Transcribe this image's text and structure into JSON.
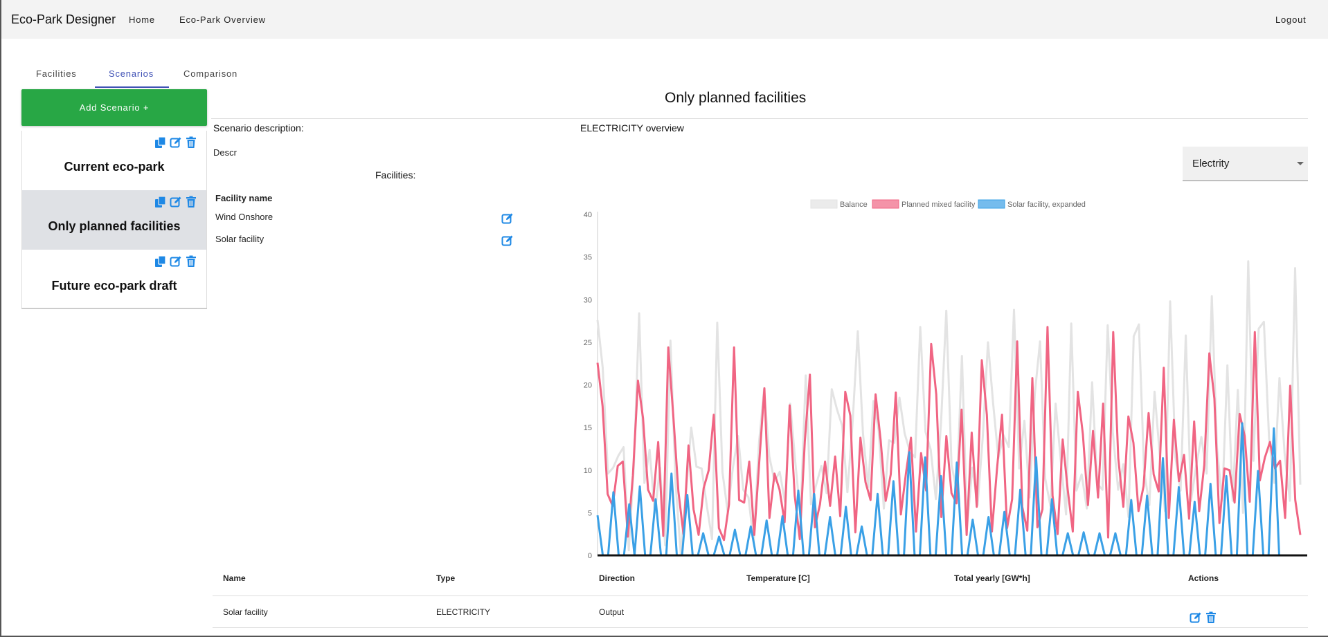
{
  "navbar": {
    "brand": "Eco-Park Designer",
    "links": [
      "Home",
      "Eco-Park Overview"
    ],
    "logout": "Logout"
  },
  "tabs": [
    {
      "label": "Facilities",
      "active": false
    },
    {
      "label": "Scenarios",
      "active": true
    },
    {
      "label": "Comparison",
      "active": false
    }
  ],
  "sidebar": {
    "add_button": "Add Scenario +",
    "scenarios": [
      {
        "name": "Current eco-park",
        "selected": false
      },
      {
        "name": "Only planned facilities",
        "selected": true
      },
      {
        "name": "Future eco-park draft",
        "selected": false
      }
    ]
  },
  "scenario": {
    "title": "Only planned facilities",
    "description_label": "Scenario description:",
    "description": "Descr",
    "facilities_label": "Facilities:",
    "facilities_header": "Facility name",
    "facilities": [
      "Wind Onshore",
      "Solar facility"
    ]
  },
  "overview": {
    "title": "ELECTRICITY overview",
    "select_value": "Electrity"
  },
  "colors": {
    "accent": "#3f51b5",
    "add_button": "#28a745",
    "icon_blue": "#1e88e5",
    "balance": "#e3e3e3",
    "planned": "#f06583",
    "solar": "#3aa0e6"
  },
  "chart_data": {
    "type": "line",
    "title": "",
    "ylim": [
      0,
      40
    ],
    "yticks": [
      0,
      5,
      10,
      15,
      20,
      25,
      30,
      35,
      40
    ],
    "legend_position": "top-center",
    "grid": false,
    "series": [
      {
        "name": "Balance",
        "color": "#e3e3e3",
        "values": [
          27.6,
          22.0,
          9.6,
          10.3,
          11.7,
          12.7,
          0.6,
          10.7,
          28.4,
          8.5,
          12.4,
          5.0,
          10.3,
          1.2,
          25.2,
          8.4,
          0.1,
          7.4,
          15.0,
          10.4,
          10.2,
          5.8,
          1.9,
          27.3,
          9.8,
          5.1,
          10.3,
          14.0,
          7.7,
          6.8,
          1.5,
          13.1,
          19.5,
          11.6,
          8.7,
          9.8,
          6.3,
          17.8,
          10.9,
          4.6,
          21.1,
          6.0,
          8.3,
          10.5,
          7.3,
          19.5,
          17.1,
          15.2,
          7.4,
          15.6,
          26.3,
          14.3,
          8.0,
          18.1,
          14.7,
          5.5,
          13.5,
          13.2,
          18.5,
          14.3,
          12.2,
          11.5,
          26.8,
          14.5,
          12.4,
          6.6,
          15.7,
          28.7,
          10.6,
          7.6,
          23.4,
          3.5,
          10.3,
          5.9,
          13.9,
          25.0,
          17.8,
          11.4,
          14.1,
          12.7,
          28.8,
          10.2,
          15.8,
          6.8,
          19.0,
          25.1,
          9.0,
          5.8,
          17.8,
          11.1,
          4.8,
          27.2,
          7.6,
          9.5,
          5.5,
          20.3,
          8.4,
          7.7,
          27.0,
          14.4,
          7.7,
          10.7,
          4.5,
          25.7,
          27.1,
          9.9,
          5.9,
          19.2,
          11.8,
          5.2,
          29.8,
          11.5,
          7.6,
          25.8,
          6.4,
          10.5,
          13.9,
          9.6,
          30.4,
          12.6,
          6.4,
          22.3,
          6.4,
          19.4,
          5.0,
          34.5,
          11.1,
          26.6,
          27.4,
          13.7,
          8.5,
          20.8,
          11.9,
          6.4,
          33.7,
          8.3
        ]
      },
      {
        "name": "Planned mixed facility",
        "color": "#f06583",
        "values": [
          22.6,
          17.5,
          7.2,
          5.8,
          10.5,
          11.0,
          2.2,
          9.4,
          20.5,
          16.1,
          7.7,
          6.4,
          13.3,
          2.3,
          24.4,
          16.3,
          7.5,
          2.5,
          12.9,
          5.4,
          2.4,
          7.9,
          10.0,
          16.5,
          3.2,
          1.8,
          6.0,
          24.4,
          6.5,
          6.2,
          11.0,
          2.4,
          11.1,
          19.6,
          4.4,
          9.6,
          7.7,
          3.9,
          17.6,
          7.0,
          1.9,
          13.4,
          21.2,
          3.3,
          6.0,
          11.0,
          5.8,
          11.6,
          4.6,
          19.2,
          16.4,
          2.7,
          13.8,
          8.6,
          6.5,
          18.9,
          13.5,
          6.4,
          9.5,
          19.1,
          4.8,
          9.6,
          13.8,
          2.8,
          12.0,
          7.6,
          24.8,
          18.9,
          4.5,
          14.0,
          7.3,
          6.1,
          17.1,
          2.4,
          14.4,
          5.7,
          22.9,
          16.5,
          2.8,
          10.1,
          16.5,
          3.2,
          6.6,
          25.1,
          5.7,
          2.9,
          20.8,
          3.3,
          5.4,
          26.8,
          7.0,
          2.5,
          13.6,
          7.7,
          2.8,
          19.2,
          14.2,
          5.9,
          14.6,
          6.8,
          17.8,
          2.1,
          26.2,
          11.4,
          5.7,
          16.3,
          13.2,
          5.2,
          8.1,
          16.7,
          9.5,
          7.5,
          22.0,
          4.4,
          15.9,
          8.7,
          11.8,
          4.3,
          15.7,
          5.2,
          10.6,
          23.7,
          18.4,
          3.8,
          10.2,
          10.0,
          6.2,
          16.6,
          14.0,
          6.3,
          26.2,
          8.8,
          11.5,
          13.3,
          10.2,
          11.1,
          4.4,
          19.9,
          6.5,
          2.4
        ]
      },
      {
        "name": "Solar facility, expanded",
        "color": "#3aa0e6",
        "values": [
          4.7,
          0.0,
          0.0,
          7.4,
          0.0,
          0.0,
          6.0,
          0.0,
          8.1,
          0.0,
          0.0,
          6.6,
          0.0,
          0.0,
          9.6,
          0.0,
          0.0,
          7.1,
          0.0,
          0.0,
          2.6,
          0.0,
          0.0,
          2.2,
          0.0,
          0.0,
          3.0,
          0.0,
          0.0,
          3.4,
          0.0,
          0.0,
          4.1,
          0.0,
          0.0,
          4.6,
          0.0,
          0.0,
          7.6,
          0.0,
          0.0,
          7.2,
          0.0,
          0.0,
          4.5,
          0.0,
          0.0,
          5.7,
          0.0,
          0.0,
          3.4,
          0.0,
          0.0,
          7.2,
          0.0,
          0.0,
          8.7,
          0.0,
          0.0,
          12.1,
          0.0,
          0.0,
          11.5,
          0.0,
          0.0,
          9.3,
          0.0,
          0.0,
          10.9,
          0.0,
          0.0,
          4.2,
          0.0,
          0.0,
          4.5,
          0.0,
          0.0,
          5.1,
          0.0,
          0.0,
          7.7,
          0.0,
          0.0,
          11.5,
          0.0,
          0.0,
          6.6,
          0.0,
          0.0,
          2.6,
          0.0,
          0.0,
          2.7,
          0.0,
          0.0,
          2.6,
          0.0,
          0.0,
          2.6,
          0.0,
          0.0,
          6.5,
          0.0,
          0.0,
          7.0,
          0.0,
          0.0,
          11.4,
          0.0,
          0.0,
          8.0,
          0.0,
          0.0,
          6.3,
          0.0,
          0.0,
          8.4,
          0.0,
          0.0,
          9.3,
          0.0,
          0.0,
          15.5,
          0.0,
          0.0,
          9.9,
          0.0,
          0.0,
          14.9,
          0.0,
          0.0,
          0.0,
          0.0,
          0.0
        ]
      }
    ]
  },
  "table": {
    "headers": [
      "Name",
      "Type",
      "Direction",
      "Temperature [C]",
      "Total yearly [GW*h]",
      "Actions"
    ],
    "rows": [
      {
        "name": "Solar facility",
        "type": "ELECTRICITY",
        "direction": "Output",
        "temperature": "",
        "total": ""
      }
    ]
  }
}
